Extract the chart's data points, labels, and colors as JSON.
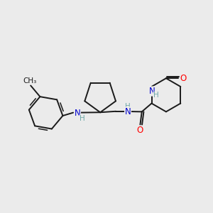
{
  "bg_color": "#ebebeb",
  "bond_color": "#1a1a1a",
  "N_color": "#0000cd",
  "O_color": "#ff0000",
  "NH_color": "#6fa8a8",
  "font_size": 8.5,
  "fig_size": [
    3.0,
    3.0
  ],
  "dpi": 100,
  "xlim": [
    0,
    10
  ],
  "ylim": [
    0,
    10
  ]
}
